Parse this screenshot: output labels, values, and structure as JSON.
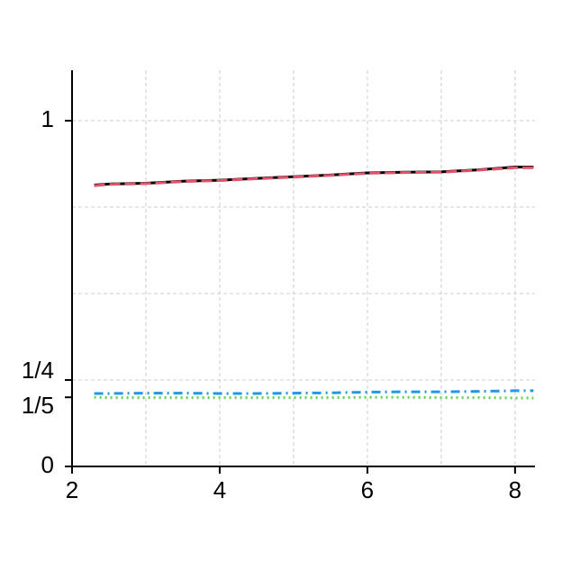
{
  "chart_data": {
    "type": "line",
    "x": [
      2.3,
      2.5,
      3,
      3.5,
      4,
      4.5,
      5,
      5.5,
      6,
      6.5,
      7,
      7.5,
      8,
      8.25
    ],
    "series": [
      {
        "color": "#000000",
        "dash": "solid",
        "values": [
          0.814,
          0.817,
          0.819,
          0.825,
          0.828,
          0.833,
          0.838,
          0.843,
          0.849,
          0.851,
          0.852,
          0.858,
          0.866,
          0.866
        ]
      },
      {
        "color": "#df536b",
        "dash": "dashed",
        "values": [
          0.812,
          0.816,
          0.818,
          0.824,
          0.827,
          0.832,
          0.837,
          0.842,
          0.848,
          0.85,
          0.851,
          0.857,
          0.864,
          0.864
        ]
      },
      {
        "color": "#2297e6",
        "dash": "dashdot",
        "values": [
          0.211,
          0.211,
          0.212,
          0.212,
          0.211,
          0.211,
          0.212,
          0.213,
          0.215,
          0.216,
          0.216,
          0.217,
          0.219,
          0.219
        ]
      },
      {
        "color": "#61d04f",
        "dash": "dotted",
        "values": [
          0.2,
          0.199,
          0.199,
          0.199,
          0.199,
          0.199,
          0.199,
          0.199,
          0.2,
          0.2,
          0.199,
          0.199,
          0.198,
          0.198
        ]
      }
    ],
    "xlim": [
      2,
      8.27
    ],
    "ylim": [
      0,
      1.146
    ],
    "xticks": [
      2,
      4,
      6,
      8
    ],
    "yticks": [
      0,
      {
        "value": 0.2,
        "label": "1/5"
      },
      {
        "value": 0.25,
        "label": "1/4"
      },
      1
    ],
    "xgrid": [
      3,
      4,
      5,
      6,
      7,
      8
    ],
    "ygrid": [
      0.25,
      0.5,
      0.75,
      1
    ]
  }
}
